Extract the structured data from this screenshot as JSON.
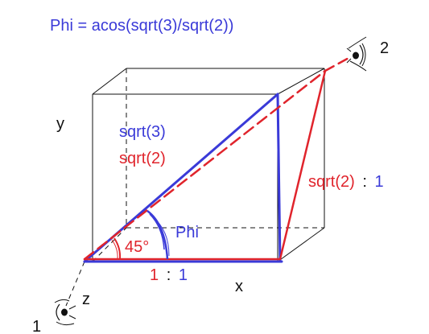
{
  "colors": {
    "blue": "#3a3ad8",
    "red": "#e0242c",
    "black": "#111111",
    "dashed_box": "#111111"
  },
  "formula": "Phi = acos(sqrt(3)/sqrt(2))",
  "axes": {
    "x": "x",
    "y": "y",
    "z": "z"
  },
  "labels": {
    "sqrt3": "sqrt(3)",
    "sqrt2": "sqrt(2)",
    "phi": "Phi",
    "angle45": "45°",
    "ratio_bottom_num": "1",
    "ratio_bottom_sep": ":",
    "ratio_bottom_den": "1",
    "ratio_right_num": "sqrt(2)",
    "ratio_right_sep": ":",
    "ratio_right_den": "1"
  },
  "viewpoints": {
    "one": "1",
    "two": "2"
  },
  "icons": {
    "viewpoint_one": "eye-icon",
    "viewpoint_two": "eye-icon"
  }
}
